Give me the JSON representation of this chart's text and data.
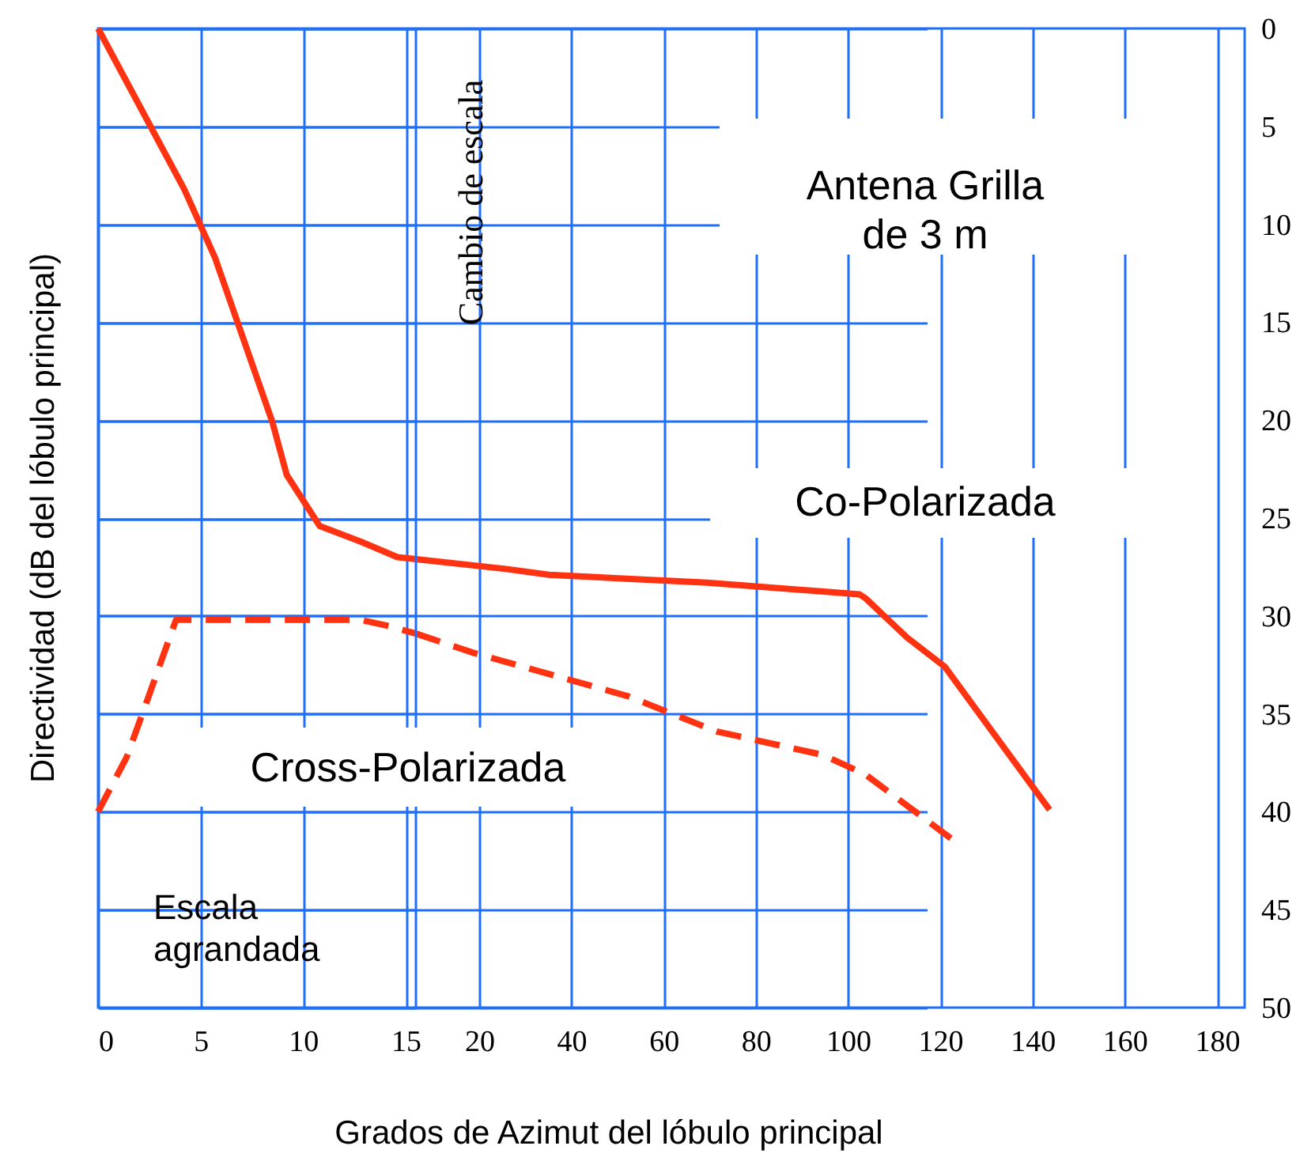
{
  "chart_data": [
    {
      "type": "line",
      "ylabel": "Directividad (dB del lóbulo principal)",
      "xlim": [
        0,
        15.5
      ],
      "xticks": [
        0,
        5,
        10,
        15
      ],
      "ylim": [
        50,
        0
      ],
      "yticks": [
        0,
        5,
        10,
        15,
        20,
        25,
        30,
        35,
        40,
        45,
        50
      ],
      "tick_labels": "x",
      "grid": true,
      "series": [
        {
          "color": "#ff3311",
          "line_style": "solid",
          "x": [
            0,
            4.2,
            5.7,
            8.5,
            9.2,
            10.8,
            12.8,
            14.6,
            15.5
          ],
          "values": [
            0,
            8.2,
            11.7,
            20.1,
            22.8,
            25.4,
            26.2,
            27,
            27.1
          ]
        },
        {
          "color": "#ff3311",
          "line_style": "dashed",
          "x": [
            0,
            1.4,
            2.4,
            3.8,
            12.8,
            14.1,
            15.5
          ],
          "values": [
            40,
            37.2,
            34.3,
            30.2,
            30.2,
            30.5,
            30.9
          ]
        }
      ],
      "annotations": [
        "Escala\nagrandada"
      ]
    },
    {
      "type": "line",
      "xlabel": "Grados de Azimut del lóbulo principal",
      "xlim": [
        6.3,
        186
      ],
      "xticks": [
        20,
        40,
        60,
        80,
        100,
        120,
        140,
        160,
        180
      ],
      "ylim": [
        50,
        0
      ],
      "yticks": [
        0,
        5,
        10,
        15,
        20,
        25,
        30,
        35,
        40,
        45,
        50
      ],
      "grid": true,
      "series": [
        {
          "color": "#ff3311",
          "line_style": "solid",
          "x": [
            6.3,
            25.8,
            35.1,
            69.5,
            102.5,
            103.8,
            112.8,
            121,
            143.7
          ],
          "values": [
            27.1,
            27.6,
            27.9,
            28.3,
            28.9,
            29.1,
            31.1,
            32.6,
            39.9
          ]
        },
        {
          "color": "#ff3311",
          "line_style": "dashed",
          "x": [
            6.3,
            19,
            52.3,
            71.5,
            94.6,
            103.8,
            123.1
          ],
          "values": [
            30.9,
            31.9,
            34.1,
            35.9,
            37.1,
            38.1,
            41.5
          ]
        }
      ],
      "annotations": [
        "Antena Grilla\nde 3 m",
        "Co-Polarizada",
        "Cross-Polarizada",
        "Cambio de escala"
      ]
    }
  ]
}
